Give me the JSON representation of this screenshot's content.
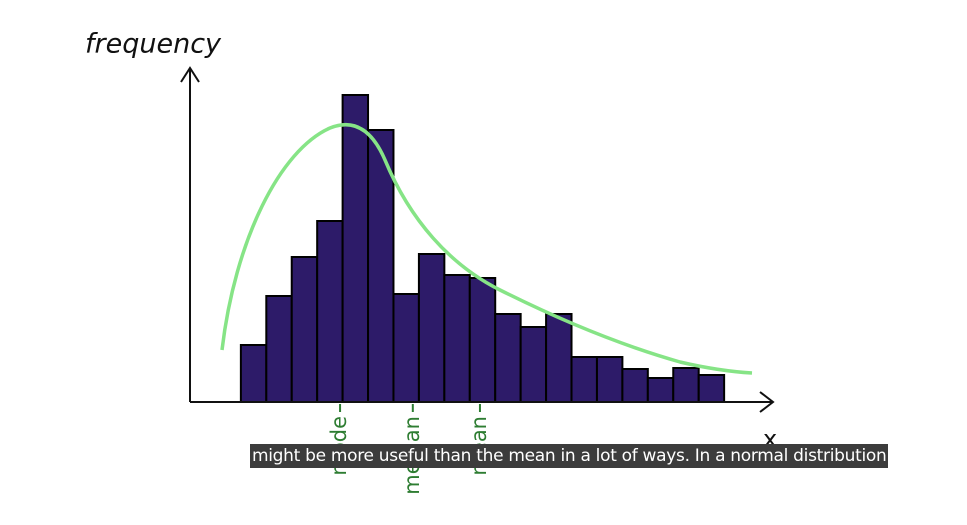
{
  "chart_data": {
    "type": "histogram",
    "y_label": "frequency",
    "x_label": "x",
    "bins": [
      0,
      1,
      2,
      3,
      4,
      5,
      6,
      7,
      8,
      9,
      10,
      11,
      12,
      13,
      14,
      15,
      16,
      17,
      18,
      19
    ],
    "values": [
      57,
      106,
      145,
      181,
      307,
      272,
      108,
      148,
      127,
      124,
      88,
      75,
      88,
      45,
      45,
      33,
      24,
      34,
      27
    ],
    "color": "#2d1b69",
    "xlim": [
      -2,
      21
    ],
    "ylim": [
      0,
      330
    ],
    "annotations": [
      {
        "text": "mode",
        "x": 3.9
      },
      {
        "text": "median",
        "x": 6.76
      },
      {
        "text": "mean",
        "x": 9.4
      }
    ],
    "annotation_color": "#2e7d32"
  },
  "caption": "might be more useful than the mean in a lot of ways. In a normal distribution"
}
